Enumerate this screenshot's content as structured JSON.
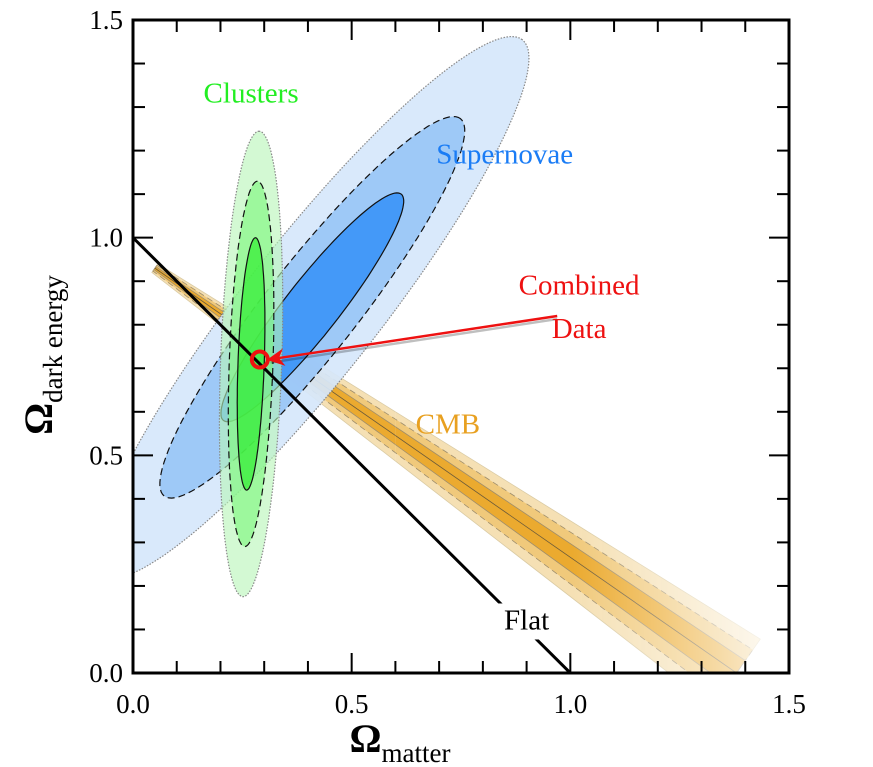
{
  "chart_data": {
    "type": "scatter",
    "title": "",
    "xlabel": {
      "symbol": "Ω",
      "subscript": "matter"
    },
    "ylabel": {
      "symbol": "Ω",
      "subscript": "dark energy"
    },
    "xlim": [
      0.0,
      1.5
    ],
    "ylim": [
      0.0,
      1.5
    ],
    "x_ticks": [
      "0.0",
      "0.5",
      "1.0",
      "1.5"
    ],
    "y_ticks": [
      "0.0",
      "0.5",
      "1.0",
      "1.5"
    ],
    "minor_tick_step": 0.1,
    "grid": false,
    "series": [
      {
        "name": "Supernovae",
        "kind": "confidence-ellipse",
        "color": "#1a7cf5",
        "center": [
          0.41,
          0.84
        ],
        "angle_deg": 52,
        "contours": [
          {
            "level": "3-sigma",
            "semi_major": 0.78,
            "semi_minor": 0.155,
            "fill": "#d6e7fb",
            "line": "dotted"
          },
          {
            "level": "2-sigma",
            "semi_major": 0.55,
            "semi_minor": 0.105,
            "fill": "#99c5f6",
            "line": "dashed"
          },
          {
            "level": "1-sigma",
            "semi_major": 0.33,
            "semi_minor": 0.062,
            "fill": "#3d95f7",
            "line": "solid"
          }
        ]
      },
      {
        "name": "Clusters",
        "kind": "confidence-ellipse",
        "color": "#22ee22",
        "center": [
          0.27,
          0.71
        ],
        "angle_deg": 88,
        "contours": [
          {
            "level": "3-sigma",
            "semi_major": 0.535,
            "semi_minor": 0.07,
            "fill": "#b8f5b8",
            "line": "dotted"
          },
          {
            "level": "2-sigma",
            "semi_major": 0.42,
            "semi_minor": 0.05,
            "fill": "#7df77d",
            "line": "dashed"
          },
          {
            "level": "1-sigma",
            "semi_major": 0.29,
            "semi_minor": 0.03,
            "fill": "#22ee22",
            "line": "solid"
          }
        ]
      },
      {
        "name": "CMB",
        "kind": "confidence-band",
        "color": "#e8a020",
        "start": [
          0.05,
          0.93
        ],
        "end": [
          1.38,
          0.0
        ],
        "contours": [
          {
            "level": "3-sigma",
            "half_width_start": 0.012,
            "half_width_end": 0.095,
            "fill": "#f5dfb0"
          },
          {
            "level": "2-sigma",
            "half_width_start": 0.008,
            "half_width_end": 0.065,
            "fill": "#f0c878"
          },
          {
            "level": "1-sigma",
            "half_width_start": 0.004,
            "half_width_end": 0.035,
            "fill": "#eaa82a"
          }
        ]
      },
      {
        "name": "Flat",
        "kind": "line",
        "color": "#000000",
        "points": [
          [
            0.0,
            1.0
          ],
          [
            1.0,
            0.0
          ]
        ]
      },
      {
        "name": "Combined Data",
        "kind": "point",
        "color": "#ee1111",
        "x": 0.29,
        "y": 0.72
      }
    ],
    "annotations": [
      {
        "text": "Clusters",
        "color": "#22ee22",
        "at": [
          0.27,
          1.31
        ]
      },
      {
        "text": "Supernovae",
        "color": "#1a7cf5",
        "at": [
          0.85,
          1.17
        ]
      },
      {
        "text": "Combined",
        "color": "#ee1111",
        "at": [
          1.02,
          0.87
        ]
      },
      {
        "text": "Data",
        "color": "#ee1111",
        "at": [
          1.02,
          0.77
        ]
      },
      {
        "text": "CMB",
        "color": "#e8a020",
        "at": [
          0.72,
          0.55
        ]
      },
      {
        "text": "Flat",
        "color": "#000000",
        "at": [
          0.9,
          0.1
        ]
      }
    ],
    "arrow": {
      "color": "#ee1111",
      "from": [
        0.97,
        0.82
      ],
      "to": [
        0.31,
        0.72
      ]
    },
    "legend": "none"
  }
}
